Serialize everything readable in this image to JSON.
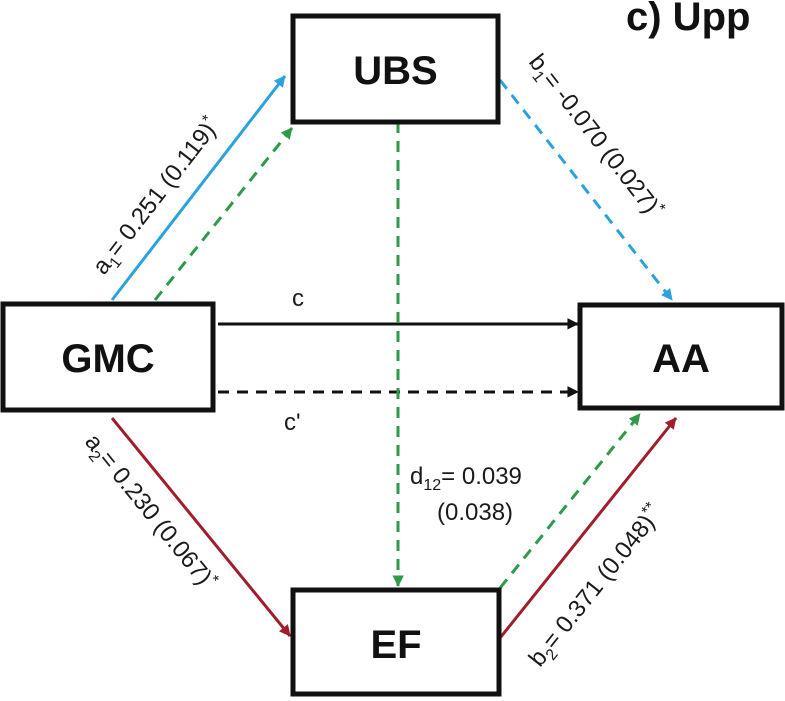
{
  "panel_title": "c) Upp",
  "nodes": {
    "ubs": "UBS",
    "gmc": "GMC",
    "aa": "AA",
    "ef": "EF"
  },
  "labels": {
    "a1_pre": "a",
    "a1_sub": "1",
    "a1_post": "= 0.251 (0.119)",
    "a1_sig": "*",
    "b1_pre": "b",
    "b1_sub": "1",
    "b1_post": "= -0.070 (0.027)",
    "b1_sig": "*",
    "a2_pre": "a",
    "a2_sub": "2",
    "a2_post": "= 0.230 (0.067)",
    "a2_sig": "*",
    "b2_pre": "b",
    "b2_sub": "2",
    "b2_post": "= 0.371 (0.048)",
    "b2_sig": "**",
    "c": "c",
    "c_prime": "c'",
    "d12_pre": "d",
    "d12_sub": "12",
    "d12_post": "= 0.039",
    "d12_se": "(0.038)"
  },
  "colors": {
    "direct": "#111111",
    "path_ubs": "#2aa3dd",
    "path_ef": "#a11d2b",
    "serial_mediation": "#2e9a4a"
  }
}
